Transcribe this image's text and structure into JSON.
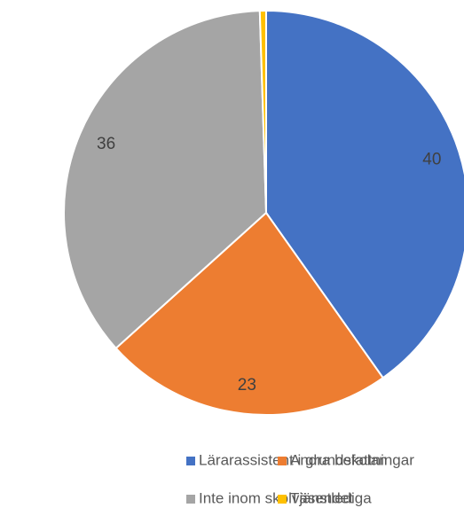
{
  "chart_data": {
    "type": "pie",
    "categories": [
      "Lärarassistent i grundskolan",
      "Andra befattningar",
      "Inte inom skolväsendet",
      "Tjänstlediga"
    ],
    "values": [
      40,
      23,
      36,
      0.5
    ],
    "colors": [
      "#4472c4",
      "#ed7d31",
      "#a5a5a5",
      "#ffc000"
    ],
    "legend": "bottom"
  }
}
